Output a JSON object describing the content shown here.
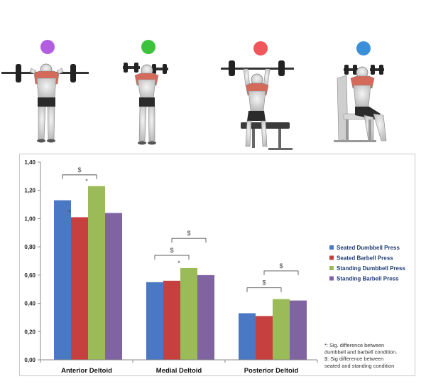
{
  "illustrations": [
    {
      "name": "standing-barbell-press-figure",
      "dot_color": "#b35de0"
    },
    {
      "name": "standing-dumbbell-press-figure",
      "dot_color": "#3cc23c"
    },
    {
      "name": "seated-barbell-press-figure",
      "dot_color": "#f0565a"
    },
    {
      "name": "seated-dumbbell-press-figure",
      "dot_color": "#3c8fd9"
    }
  ],
  "chart_data": {
    "type": "bar",
    "categories": [
      "Anterior Deltoid",
      "Medial Deltoid",
      "Posterior Deltoid"
    ],
    "series": [
      {
        "name": "Seated Dumbbell Press",
        "color": "#4a78c4",
        "values": [
          1.13,
          0.55,
          0.33
        ]
      },
      {
        "name": "Seated Barbell Press",
        "color": "#c5403e",
        "values": [
          1.01,
          0.56,
          0.31
        ]
      },
      {
        "name": "Standing Dumbbell Press",
        "color": "#9bbb59",
        "values": [
          1.23,
          0.65,
          0.43
        ]
      },
      {
        "name": "Standing Barbell Press",
        "color": "#8064a2",
        "values": [
          1.04,
          0.6,
          0.42
        ]
      }
    ],
    "ylim": [
      0,
      1.4
    ],
    "yticks": [
      "0,00",
      "0,20",
      "0,40",
      "0,60",
      "0,80",
      "1,00",
      "1,20",
      "1,40"
    ],
    "legend_position": "right",
    "grid": false,
    "star_marks": [
      {
        "category": 0,
        "series": 1,
        "text": "*"
      },
      {
        "category": 0,
        "series": 2,
        "text": "*"
      },
      {
        "category": 1,
        "series": 2,
        "text": "*"
      }
    ],
    "brackets": [
      {
        "category": 0,
        "from": 0,
        "to": 2,
        "level": 1.31,
        "text": "$"
      },
      {
        "category": 1,
        "from": 0,
        "to": 2,
        "level": 0.74,
        "text": "$"
      },
      {
        "category": 1,
        "from": 1,
        "to": 3,
        "level": 0.86,
        "text": "$"
      },
      {
        "category": 2,
        "from": 0,
        "to": 2,
        "level": 0.51,
        "text": "$"
      },
      {
        "category": 2,
        "from": 1,
        "to": 3,
        "level": 0.63,
        "text": "$"
      }
    ],
    "footnotes": [
      "*: Sig. difference between",
      "dumbbell and barbell condition.",
      "$: Sig difference between",
      "seated and standing condition"
    ]
  }
}
